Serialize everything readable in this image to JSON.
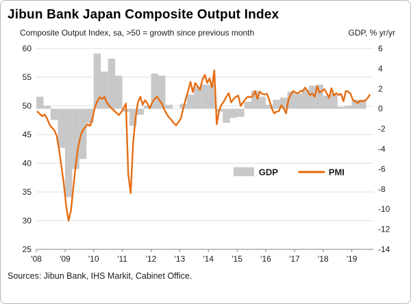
{
  "header": {
    "title": "Jibun Bank Japan Composite Output Index"
  },
  "chart_data": {
    "type": "combo",
    "title": "Jibun Bank Japan Composite Output Index",
    "left_axis_label": "Composite Output Index, sa, >50 = growth since previous month",
    "right_axis_label": "GDP, % yr/yr",
    "left_axis": {
      "min": 25,
      "max": 60,
      "step": 5
    },
    "right_axis": {
      "min": -14,
      "max": 6,
      "step": 2
    },
    "x_axis": {
      "min": 2008,
      "max": 2019.75,
      "tick_years": [
        2008,
        2009,
        2010,
        2011,
        2012,
        2013,
        2014,
        2015,
        2016,
        2017,
        2018,
        2019
      ],
      "tick_labels": [
        "'08",
        "'09",
        "'10",
        "'11",
        "'12",
        "'13",
        "'14",
        "'15",
        "'16",
        "'17",
        "'18",
        "'19"
      ]
    },
    "grid": "horizontal",
    "series": [
      {
        "name": "GDP",
        "type": "bar",
        "axis": "right",
        "color": "#c8c8c8",
        "frequency": "quarterly",
        "x_start": 2008.125,
        "x_step": 0.25,
        "values": [
          1.2,
          0.3,
          -1.1,
          -3.9,
          -8.8,
          -6.0,
          -5.0,
          -1.4,
          5.5,
          3.7,
          5.0,
          3.3,
          -0.3,
          -1.7,
          -0.6,
          0.3,
          3.5,
          3.3,
          0.4,
          0.0,
          0.5,
          1.4,
          2.2,
          2.4,
          2.4,
          -0.3,
          -1.4,
          -0.9,
          -0.8,
          0.7,
          1.8,
          1.2,
          0.4,
          0.9,
          1.1,
          1.7,
          1.5,
          1.9,
          2.3,
          2.4,
          1.3,
          1.5,
          0.2,
          0.3,
          0.9,
          0.9
        ]
      },
      {
        "name": "PMI",
        "type": "line",
        "axis": "left",
        "color": "#e76c10",
        "frequency": "monthly",
        "x_start": 2008.0417,
        "x_step": 0.08333,
        "values": [
          49.0,
          48.6,
          48.2,
          48.5,
          47.8,
          46.8,
          46.2,
          45.8,
          44.8,
          42.5,
          39.5,
          36.5,
          32.5,
          30.0,
          31.8,
          35.8,
          39.8,
          42.8,
          44.8,
          45.8,
          46.3,
          46.8,
          46.5,
          47.8,
          49.8,
          50.8,
          51.5,
          51.2,
          51.6,
          50.6,
          50.0,
          49.6,
          49.2,
          48.8,
          48.4,
          48.9,
          49.6,
          50.4,
          38.0,
          34.8,
          43.5,
          47.8,
          50.6,
          51.6,
          50.2,
          51.0,
          50.4,
          49.6,
          50.6,
          51.2,
          51.6,
          51.0,
          50.4,
          49.4,
          48.6,
          48.0,
          47.6,
          47.0,
          46.6,
          47.2,
          47.8,
          49.6,
          51.2,
          52.6,
          54.2,
          52.4,
          54.0,
          53.4,
          52.8,
          54.6,
          55.4,
          54.0,
          54.8,
          53.2,
          56.2,
          46.8,
          49.2,
          50.2,
          50.8,
          51.6,
          52.2,
          50.6,
          51.2,
          51.6,
          51.8,
          50.0,
          50.6,
          51.2,
          51.6,
          51.5,
          51.7,
          52.6,
          51.2,
          52.5,
          52.1,
          52.0,
          52.1,
          51.0,
          49.6,
          48.7,
          49.0,
          49.1,
          50.1,
          49.6,
          48.7,
          51.1,
          52.0,
          52.6,
          52.3,
          52.2,
          52.6,
          52.6,
          53.2,
          52.6,
          51.9,
          52.1,
          51.6,
          53.4,
          52.3,
          52.6,
          52.9,
          52.2,
          51.4,
          53.1,
          51.8,
          52.2,
          51.9,
          52.1,
          50.8,
          52.6,
          52.5,
          52.1,
          51.0,
          50.8,
          50.5,
          50.9,
          50.8,
          50.9,
          51.3,
          51.9
        ]
      }
    ],
    "legend": [
      {
        "label": "GDP",
        "type": "bar",
        "color": "#c8c8c8"
      },
      {
        "label": "PMI",
        "type": "line",
        "color": "#e76c10"
      }
    ],
    "legend_position": "inside-center-right"
  },
  "footer": {
    "source": "Sources: Jibun Bank, IHS Markit, Cabinet Office."
  }
}
